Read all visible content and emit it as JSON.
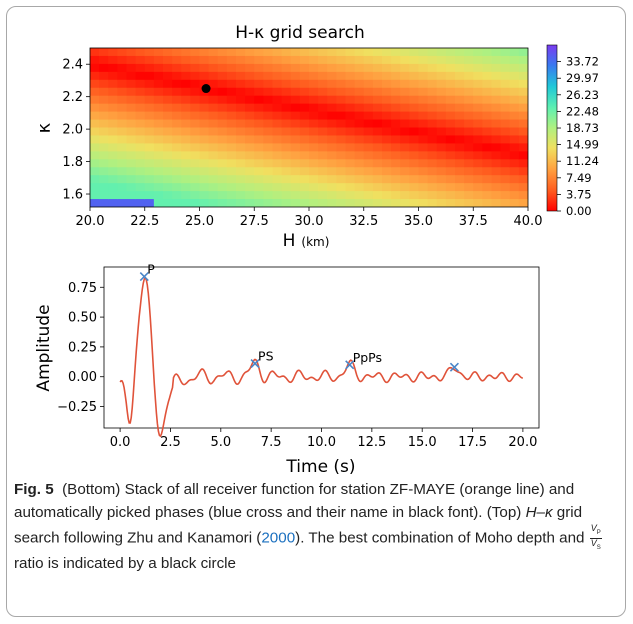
{
  "chart_data": [
    {
      "type": "heatmap",
      "title": "H-κ grid search",
      "xlabel": "H",
      "xlabel_unit": "(km)",
      "ylabel": "κ",
      "xlim": [
        20.0,
        40.0
      ],
      "ylim": [
        1.52,
        2.5
      ],
      "xticks": [
        "20.0",
        "22.5",
        "25.0",
        "27.5",
        "30.0",
        "32.5",
        "35.0",
        "37.5",
        "40.0"
      ],
      "yticks": [
        "1.6",
        "1.8",
        "2.0",
        "2.2",
        "2.4"
      ],
      "colorbar_ticks": [
        "33.72",
        "29.97",
        "26.23",
        "22.48",
        "18.73",
        "14.99",
        "11.24",
        "7.49",
        "3.75",
        "0.00"
      ],
      "colorbar_range": [
        0.0,
        37.47
      ],
      "best_fit": {
        "H": 25.3,
        "kappa": 2.25
      }
    },
    {
      "type": "line",
      "xlabel": "Time (s)",
      "ylabel": "Amplitude",
      "xlim": [
        -0.8,
        20.8
      ],
      "ylim": [
        -0.43,
        0.92
      ],
      "xticks": [
        "0.0",
        "2.5",
        "5.0",
        "7.5",
        "10.0",
        "12.5",
        "15.0",
        "17.5",
        "20.0"
      ],
      "yticks": [
        "0.75",
        "0.50",
        "0.25",
        "0.00",
        "−0.25"
      ],
      "line_color": "#e0533a",
      "pick_color": "#4a86c8",
      "picks": [
        {
          "label": "P",
          "x": 1.2,
          "y": 0.84
        },
        {
          "label": "PS",
          "x": 6.7,
          "y": 0.11
        },
        {
          "label": "PpPs",
          "x": 11.4,
          "y": 0.1
        },
        {
          "label": "",
          "x": 16.6,
          "y": 0.08
        }
      ]
    }
  ],
  "caption": {
    "fig_label": "Fig. 5",
    "part1": "(Bottom) Stack of all receiver function for station ZF-MAYE (orange line) and automatically picked phases (blue cross and their name in black font). (Top) ",
    "hk": "H–κ",
    "part2": " grid search following Zhu and Kanamori (",
    "ref": "2000",
    "part3": "). The best combination of Moho depth and ",
    "vp": "V",
    "vp_sub": "P",
    "vs": "V",
    "vs_sub": "S",
    "part4": " ratio is indicated by a black circle"
  }
}
